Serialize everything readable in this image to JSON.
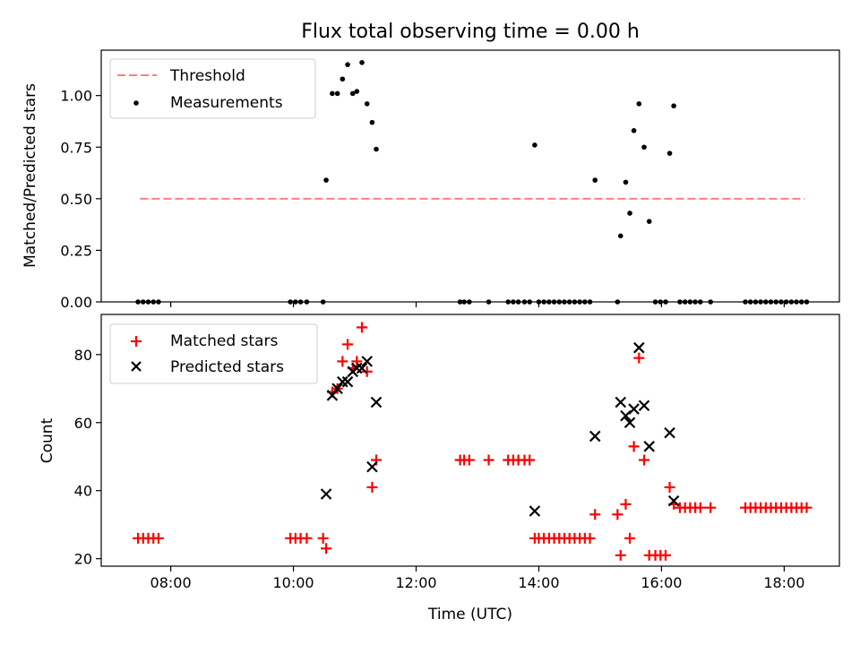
{
  "chart_data": [
    {
      "type": "scatter",
      "title": "Flux total observing time = 0.00 h",
      "ylabel": "Matched/Predicted stars",
      "xlim": [
        "06:52",
        "18:54"
      ],
      "ylim": [
        0,
        1.22
      ],
      "yticks": [
        "0.00",
        "0.25",
        "0.50",
        "0.75",
        "1.00"
      ],
      "legend": "top-left",
      "series": [
        {
          "name": "Threshold",
          "style": "dashed-line",
          "color": "#ff7f7f",
          "points": [
            [
              "07:30",
              0.5
            ],
            [
              "18:20",
              0.5
            ]
          ]
        },
        {
          "name": "Measurements",
          "style": "dot",
          "color": "#000000",
          "points": [
            [
              "07:28",
              0.0
            ],
            [
              "07:33",
              0.0
            ],
            [
              "07:38",
              0.0
            ],
            [
              "07:43",
              0.0
            ],
            [
              "07:48",
              0.0
            ],
            [
              "09:57",
              0.0
            ],
            [
              "10:02",
              0.0
            ],
            [
              "10:07",
              0.0
            ],
            [
              "10:13",
              0.0
            ],
            [
              "10:29",
              0.0
            ],
            [
              "10:32",
              0.59
            ],
            [
              "10:38",
              1.01
            ],
            [
              "10:43",
              1.01
            ],
            [
              "10:48",
              1.08
            ],
            [
              "10:53",
              1.15
            ],
            [
              "10:58",
              1.01
            ],
            [
              "11:02",
              1.02
            ],
            [
              "11:07",
              1.16
            ],
            [
              "11:12",
              0.96
            ],
            [
              "11:17",
              0.87
            ],
            [
              "11:21",
              0.74
            ],
            [
              "12:43",
              0.0
            ],
            [
              "12:47",
              0.0
            ],
            [
              "12:52",
              0.0
            ],
            [
              "13:11",
              0.0
            ],
            [
              "13:30",
              0.0
            ],
            [
              "13:35",
              0.0
            ],
            [
              "13:40",
              0.0
            ],
            [
              "13:46",
              0.0
            ],
            [
              "13:51",
              0.0
            ],
            [
              "13:56",
              0.76
            ],
            [
              "14:00",
              0.0
            ],
            [
              "14:05",
              0.0
            ],
            [
              "14:10",
              0.0
            ],
            [
              "14:15",
              0.0
            ],
            [
              "14:20",
              0.0
            ],
            [
              "14:25",
              0.0
            ],
            [
              "14:30",
              0.0
            ],
            [
              "14:35",
              0.0
            ],
            [
              "14:40",
              0.0
            ],
            [
              "14:45",
              0.0
            ],
            [
              "14:50",
              0.0
            ],
            [
              "14:55",
              0.59
            ],
            [
              "15:17",
              0.0
            ],
            [
              "15:20",
              0.32
            ],
            [
              "15:25",
              0.58
            ],
            [
              "15:29",
              0.43
            ],
            [
              "15:33",
              0.83
            ],
            [
              "15:38",
              0.96
            ],
            [
              "15:43",
              0.75
            ],
            [
              "15:48",
              0.39
            ],
            [
              "15:54",
              0.0
            ],
            [
              "15:59",
              0.0
            ],
            [
              "16:04",
              0.0
            ],
            [
              "16:08",
              0.72
            ],
            [
              "16:12",
              0.95
            ],
            [
              "16:18",
              0.0
            ],
            [
              "16:23",
              0.0
            ],
            [
              "16:28",
              0.0
            ],
            [
              "16:33",
              0.0
            ],
            [
              "16:38",
              0.0
            ],
            [
              "16:48",
              0.0
            ],
            [
              "17:22",
              0.0
            ],
            [
              "17:27",
              0.0
            ],
            [
              "17:32",
              0.0
            ],
            [
              "17:37",
              0.0
            ],
            [
              "17:42",
              0.0
            ],
            [
              "17:47",
              0.0
            ],
            [
              "17:52",
              0.0
            ],
            [
              "17:57",
              0.0
            ],
            [
              "18:02",
              0.0
            ],
            [
              "18:07",
              0.0
            ],
            [
              "18:12",
              0.0
            ],
            [
              "18:17",
              0.0
            ],
            [
              "18:22",
              0.0
            ]
          ]
        }
      ]
    },
    {
      "type": "scatter",
      "xlabel": "Time (UTC)",
      "ylabel": "Count",
      "xlim": [
        "06:52",
        "18:54"
      ],
      "ylim": [
        17.8,
        91.8
      ],
      "yticks": [
        "20",
        "40",
        "60",
        "80"
      ],
      "xticks": [
        "08:00",
        "10:00",
        "12:00",
        "14:00",
        "16:00",
        "18:00"
      ],
      "legend": "top-left",
      "series": [
        {
          "name": "Matched stars",
          "style": "plus",
          "color": "#ff0000",
          "points": [
            [
              "07:28",
              26
            ],
            [
              "07:33",
              26
            ],
            [
              "07:38",
              26
            ],
            [
              "07:43",
              26
            ],
            [
              "07:48",
              26
            ],
            [
              "09:57",
              26
            ],
            [
              "10:02",
              26
            ],
            [
              "10:07",
              26
            ],
            [
              "10:13",
              26
            ],
            [
              "10:29",
              26
            ],
            [
              "10:32",
              23
            ],
            [
              "10:38",
              69
            ],
            [
              "10:43",
              70
            ],
            [
              "10:48",
              78
            ],
            [
              "10:53",
              83
            ],
            [
              "10:58",
              76
            ],
            [
              "11:02",
              78
            ],
            [
              "11:07",
              88
            ],
            [
              "11:12",
              75
            ],
            [
              "11:17",
              41
            ],
            [
              "11:21",
              49
            ],
            [
              "12:43",
              49
            ],
            [
              "12:47",
              49
            ],
            [
              "12:52",
              49
            ],
            [
              "13:11",
              49
            ],
            [
              "13:30",
              49
            ],
            [
              "13:35",
              49
            ],
            [
              "13:40",
              49
            ],
            [
              "13:46",
              49
            ],
            [
              "13:51",
              49
            ],
            [
              "13:56",
              26
            ],
            [
              "14:00",
              26
            ],
            [
              "14:05",
              26
            ],
            [
              "14:10",
              26
            ],
            [
              "14:15",
              26
            ],
            [
              "14:20",
              26
            ],
            [
              "14:25",
              26
            ],
            [
              "14:30",
              26
            ],
            [
              "14:35",
              26
            ],
            [
              "14:40",
              26
            ],
            [
              "14:45",
              26
            ],
            [
              "14:50",
              26
            ],
            [
              "14:55",
              33
            ],
            [
              "15:17",
              33
            ],
            [
              "15:20",
              21
            ],
            [
              "15:25",
              36
            ],
            [
              "15:29",
              26
            ],
            [
              "15:33",
              53
            ],
            [
              "15:38",
              79
            ],
            [
              "15:43",
              49
            ],
            [
              "15:48",
              21
            ],
            [
              "15:54",
              21
            ],
            [
              "15:59",
              21
            ],
            [
              "16:04",
              21
            ],
            [
              "16:08",
              41
            ],
            [
              "16:12",
              36
            ],
            [
              "16:18",
              35
            ],
            [
              "16:23",
              35
            ],
            [
              "16:28",
              35
            ],
            [
              "16:33",
              35
            ],
            [
              "16:38",
              35
            ],
            [
              "16:48",
              35
            ],
            [
              "17:22",
              35
            ],
            [
              "17:27",
              35
            ],
            [
              "17:32",
              35
            ],
            [
              "17:37",
              35
            ],
            [
              "17:42",
              35
            ],
            [
              "17:47",
              35
            ],
            [
              "17:52",
              35
            ],
            [
              "17:57",
              35
            ],
            [
              "18:02",
              35
            ],
            [
              "18:07",
              35
            ],
            [
              "18:12",
              35
            ],
            [
              "18:17",
              35
            ],
            [
              "18:22",
              35
            ]
          ]
        },
        {
          "name": "Predicted stars",
          "style": "x",
          "color": "#000000",
          "points": [
            [
              "10:32",
              39
            ],
            [
              "10:38",
              68
            ],
            [
              "10:43",
              70
            ],
            [
              "10:48",
              72
            ],
            [
              "10:53",
              72
            ],
            [
              "10:58",
              75
            ],
            [
              "11:02",
              76
            ],
            [
              "11:07",
              76
            ],
            [
              "11:12",
              78
            ],
            [
              "11:17",
              47
            ],
            [
              "11:21",
              66
            ],
            [
              "13:56",
              34
            ],
            [
              "14:55",
              56
            ],
            [
              "15:20",
              66
            ],
            [
              "15:25",
              62
            ],
            [
              "15:29",
              60
            ],
            [
              "15:33",
              64
            ],
            [
              "15:38",
              82
            ],
            [
              "15:43",
              65
            ],
            [
              "15:48",
              53
            ],
            [
              "16:08",
              57
            ],
            [
              "16:12",
              37
            ]
          ]
        }
      ]
    }
  ]
}
